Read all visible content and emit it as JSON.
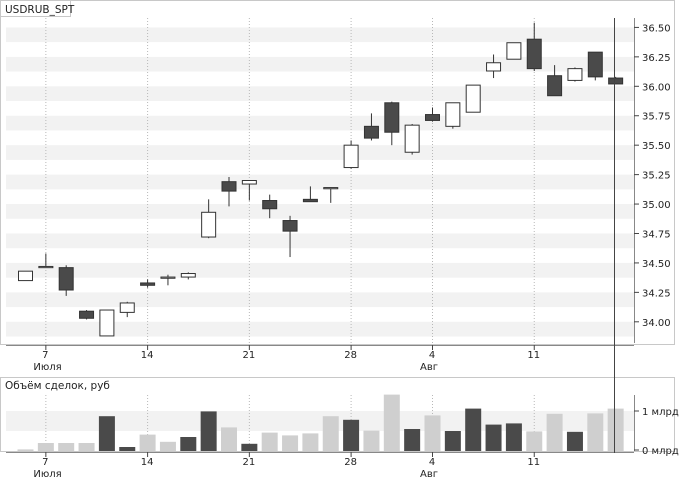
{
  "chart_data": [
    {
      "type": "candlestick",
      "title": "USDRUB_SPT",
      "ylim": [
        33.82,
        36.58
      ],
      "y_ticks": [
        {
          "value": 34.0,
          "label": "34.00"
        },
        {
          "value": 34.25,
          "label": "34.25"
        },
        {
          "value": 34.5,
          "label": "34.50"
        },
        {
          "value": 34.75,
          "label": "34.75"
        },
        {
          "value": 35.0,
          "label": "35.00"
        },
        {
          "value": 35.25,
          "label": "35.25"
        },
        {
          "value": 35.5,
          "label": "35.50"
        },
        {
          "value": 35.75,
          "label": "35.75"
        },
        {
          "value": 36.0,
          "label": "36.00"
        },
        {
          "value": 36.25,
          "label": "36.25"
        },
        {
          "value": 36.5,
          "label": "36.50"
        }
      ],
      "x_ticks": [
        {
          "index": 1,
          "label": "7",
          "sublabel": "Июля"
        },
        {
          "index": 6,
          "label": "14",
          "sublabel": ""
        },
        {
          "index": 11,
          "label": "21",
          "sublabel": ""
        },
        {
          "index": 16,
          "label": "28",
          "sublabel": ""
        },
        {
          "index": 20,
          "label": "4",
          "sublabel": "Авг"
        },
        {
          "index": 25,
          "label": "11",
          "sublabel": ""
        }
      ],
      "candles": [
        {
          "o": 34.35,
          "h": 34.43,
          "l": 34.35,
          "c": 34.43
        },
        {
          "o": 34.47,
          "h": 34.58,
          "l": 34.47,
          "c": 34.47
        },
        {
          "o": 34.46,
          "h": 34.48,
          "l": 34.22,
          "c": 34.27
        },
        {
          "o": 34.09,
          "h": 34.1,
          "l": 34.02,
          "c": 34.03
        },
        {
          "o": 33.88,
          "h": 34.1,
          "l": 33.88,
          "c": 34.1
        },
        {
          "o": 34.08,
          "h": 34.17,
          "l": 34.04,
          "c": 34.16
        },
        {
          "o": 34.33,
          "h": 34.36,
          "l": 34.29,
          "c": 34.31
        },
        {
          "o": 34.37,
          "h": 34.4,
          "l": 34.31,
          "c": 34.38
        },
        {
          "o": 34.38,
          "h": 34.42,
          "l": 34.36,
          "c": 34.41
        },
        {
          "o": 34.72,
          "h": 35.04,
          "l": 34.71,
          "c": 34.93
        },
        {
          "o": 35.19,
          "h": 35.23,
          "l": 34.98,
          "c": 35.11
        },
        {
          "o": 35.17,
          "h": 35.2,
          "l": 35.03,
          "c": 35.2
        },
        {
          "o": 35.03,
          "h": 35.08,
          "l": 34.88,
          "c": 34.96
        },
        {
          "o": 34.86,
          "h": 34.9,
          "l": 34.55,
          "c": 34.77
        },
        {
          "o": 35.04,
          "h": 35.15,
          "l": 35.02,
          "c": 35.02
        },
        {
          "o": 35.13,
          "h": 35.14,
          "l": 35.01,
          "c": 35.14
        },
        {
          "o": 35.31,
          "h": 35.54,
          "l": 35.3,
          "c": 35.5
        },
        {
          "o": 35.66,
          "h": 35.77,
          "l": 35.54,
          "c": 35.56
        },
        {
          "o": 35.86,
          "h": 35.87,
          "l": 35.5,
          "c": 35.61
        },
        {
          "o": 35.44,
          "h": 35.68,
          "l": 35.42,
          "c": 35.67
        },
        {
          "o": 35.76,
          "h": 35.82,
          "l": 35.7,
          "c": 35.71
        },
        {
          "o": 35.66,
          "h": 35.86,
          "l": 35.64,
          "c": 35.86
        },
        {
          "o": 35.78,
          "h": 36.01,
          "l": 35.78,
          "c": 36.01
        },
        {
          "o": 36.13,
          "h": 36.27,
          "l": 36.07,
          "c": 36.2
        },
        {
          "o": 36.23,
          "h": 36.37,
          "l": 36.23,
          "c": 36.37
        },
        {
          "o": 36.4,
          "h": 36.54,
          "l": 36.13,
          "c": 36.15
        },
        {
          "o": 36.09,
          "h": 36.18,
          "l": 35.92,
          "c": 35.92
        },
        {
          "o": 36.05,
          "h": 36.16,
          "l": 36.04,
          "c": 36.15
        },
        {
          "o": 36.29,
          "h": 36.29,
          "l": 36.05,
          "c": 36.08
        },
        {
          "o": 36.07,
          "h": 36.08,
          "l": 36.02,
          "c": 36.02
        }
      ]
    },
    {
      "type": "bar",
      "title": "Объём сделок, руб",
      "ylim": [
        0,
        1.4
      ],
      "y_ticks": [
        {
          "value": 0,
          "label": "0 млрд"
        },
        {
          "value": 1,
          "label": "1 млрд"
        }
      ],
      "x_ticks": [
        {
          "index": 1,
          "label": "7",
          "sublabel": "Июля"
        },
        {
          "index": 6,
          "label": "14",
          "sublabel": ""
        },
        {
          "index": 11,
          "label": "21",
          "sublabel": ""
        },
        {
          "index": 16,
          "label": "28",
          "sublabel": ""
        },
        {
          "index": 20,
          "label": "4",
          "sublabel": "Авг"
        },
        {
          "index": 25,
          "label": "11",
          "sublabel": ""
        }
      ],
      "values": [
        0.04,
        0.2,
        0.2,
        0.2,
        0.87,
        0.1,
        0.41,
        0.23,
        0.35,
        0.99,
        0.59,
        0.18,
        0.46,
        0.39,
        0.44,
        0.87,
        0.78,
        0.51,
        1.41,
        0.55,
        0.89,
        0.5,
        1.06,
        0.66,
        0.69,
        0.49,
        0.93,
        0.48,
        0.94,
        1.06
      ],
      "highlight": [
        false,
        false,
        false,
        false,
        true,
        true,
        false,
        false,
        true,
        true,
        false,
        true,
        false,
        false,
        false,
        false,
        true,
        false,
        false,
        true,
        false,
        true,
        true,
        true,
        true,
        false,
        false,
        true,
        false,
        false
      ],
      "colors": {
        "dark": "#4a4a4a",
        "light": "#cfcfcf"
      }
    }
  ]
}
